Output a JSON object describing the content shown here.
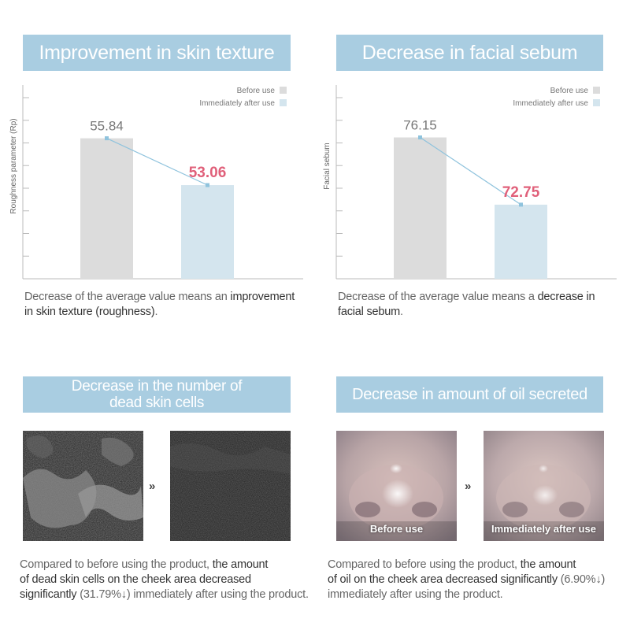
{
  "top_left": {
    "banner": "Improvement in skin texture",
    "caption_pre": "Decrease of the average value means an ",
    "caption_bold": "improvement",
    "caption_bold2": "in skin texture (roughness)",
    "caption_post": "."
  },
  "top_right": {
    "banner": "Decrease in facial sebum",
    "caption_pre": "Decrease of the average value means a ",
    "caption_bold": "decrease in",
    "caption_bold2": "facial sebum",
    "caption_post": "."
  },
  "bottom_left": {
    "banner_line1": "Decrease in the number of",
    "banner_line2": "dead skin cells",
    "separator": "»",
    "caption_pre": "Compared to before using the product, ",
    "caption_bold1": "the amount",
    "caption_bold2": "of dead skin cells on the cheek area decreased",
    "caption_bold3": "significantly",
    "caption_pct": " (31.79%↓)",
    "caption_post": " immediately after using the product."
  },
  "bottom_right": {
    "banner": "Decrease in amount of oil secreted",
    "separator": "»",
    "photo_before_label": "Before use",
    "photo_after_label": "Immediately after use",
    "caption_pre": "Compared to before using the product, ",
    "caption_bold1": "the amount",
    "caption_bold2": "of oil on the cheek area decreased significantly",
    "caption_pct": " (6.90%↓)",
    "caption_post": "immediately after using the product."
  },
  "colors": {
    "banner": "#a9cde1",
    "bar_before": "#dcdcdc",
    "bar_after": "#d4e5ee",
    "connector": "#8fc3dd",
    "highlight_value": "#e0607a",
    "axis": "#bbbbbb"
  },
  "chart_data": [
    {
      "type": "bar",
      "title": "Improvement in skin texture",
      "ylabel": "Roughness parameter (Rp)",
      "categories": [
        "Before use",
        "Immediately after use"
      ],
      "values": [
        55.84,
        53.06
      ],
      "legend": [
        "Before use",
        "Immediately after use"
      ],
      "legend_position": "top-right",
      "ylim": [
        47.5,
        59.0
      ]
    },
    {
      "type": "bar",
      "title": "Decrease in facial sebum",
      "ylabel": "Facial sebum",
      "categories": [
        "Before use",
        "Immediately after use"
      ],
      "values": [
        76.15,
        72.75
      ],
      "legend": [
        "Before use",
        "Immediately after use"
      ],
      "legend_position": "top-right",
      "ylim": [
        69.0,
        78.8
      ]
    }
  ]
}
